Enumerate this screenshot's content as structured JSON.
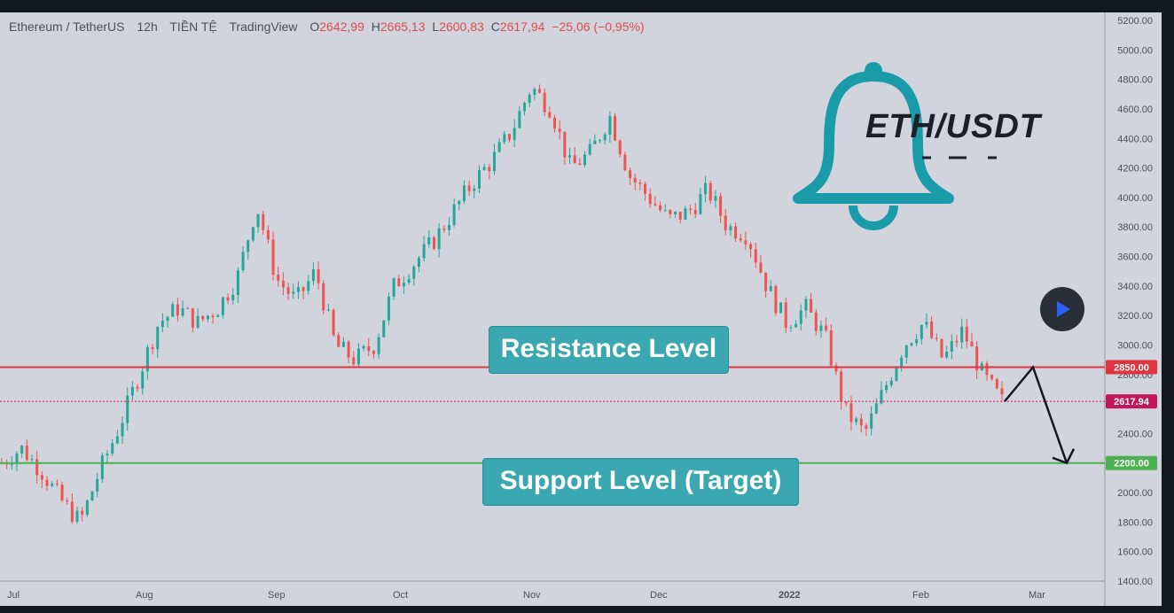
{
  "header": {
    "symbol": "Ethereum / TetherUS",
    "interval": "12h",
    "market": "TIỀN TỆ",
    "source": "TradingView",
    "o_label": "O",
    "o_value": "2642,99",
    "h_label": "H",
    "h_value": "2665,13",
    "l_label": "L",
    "l_value": "2600,83",
    "c_label": "C",
    "c_value": "2617,94",
    "change": "−25,06 (−0,95%)"
  },
  "annotations": {
    "resistance": "Resistance Level",
    "support": "Support Level (Target)",
    "pair": "ETH/USDT"
  },
  "colors": {
    "background": "#d1d4dc",
    "up": "#26a69a",
    "down": "#ef5350",
    "resistance_line": "#e0343f",
    "support_line": "#4caf50",
    "last_price": "#c2185b",
    "callout": "#3aa7b1",
    "bell": "#1a9ca8"
  },
  "chart_data": {
    "type": "candlestick",
    "ylim": [
      1400,
      5200
    ],
    "y_ticks": [
      "5200.00",
      "5000.00",
      "4800.00",
      "4600.00",
      "4400.00",
      "4200.00",
      "4000.00",
      "3800.00",
      "3600.00",
      "3400.00",
      "3200.00",
      "3000.00",
      "2800.00",
      "2600.00",
      "2400.00",
      "2200.00",
      "2000.00",
      "1800.00",
      "1600.00",
      "1400.00"
    ],
    "x_ticks": [
      "Jul",
      "Aug",
      "Sep",
      "Oct",
      "Nov",
      "Dec",
      "2022",
      "Feb",
      "Mar"
    ],
    "levels": [
      {
        "label": "2850.00",
        "value": 2850,
        "kind": "resistance"
      },
      {
        "label": "2200.00",
        "value": 2200,
        "kind": "support"
      },
      {
        "label": "2617.94",
        "value": 2617.94,
        "kind": "last"
      }
    ],
    "path_anchors": [
      {
        "date": "Jul",
        "close": 2200
      },
      {
        "date": "Jul 5",
        "close": 2300
      },
      {
        "date": "Jul 10",
        "close": 2150
      },
      {
        "date": "Jul 15",
        "close": 1950
      },
      {
        "date": "Jul 20",
        "close": 1800
      },
      {
        "date": "Jul 25",
        "close": 2150
      },
      {
        "date": "Jul 30",
        "close": 2450
      },
      {
        "date": "Aug 5",
        "close": 2800
      },
      {
        "date": "Aug 10",
        "close": 3150
      },
      {
        "date": "Aug 15",
        "close": 3250
      },
      {
        "date": "Aug 20",
        "close": 3150
      },
      {
        "date": "Aug 25",
        "close": 3250
      },
      {
        "date": "Sep 1",
        "close": 3450
      },
      {
        "date": "Sep 5",
        "close": 3950
      },
      {
        "date": "Sep 7",
        "close": 3450
      },
      {
        "date": "Sep 10",
        "close": 3300
      },
      {
        "date": "Sep 15",
        "close": 3500
      },
      {
        "date": "Sep 20",
        "close": 3000
      },
      {
        "date": "Sep 25",
        "close": 2900
      },
      {
        "date": "Oct",
        "close": 3000
      },
      {
        "date": "Oct 5",
        "close": 3400
      },
      {
        "date": "Oct 10",
        "close": 3550
      },
      {
        "date": "Oct 15",
        "close": 3700
      },
      {
        "date": "Oct 20",
        "close": 3900
      },
      {
        "date": "Oct 25",
        "close": 4100
      },
      {
        "date": "Oct 30",
        "close": 4250
      },
      {
        "date": "Nov 5",
        "close": 4450
      },
      {
        "date": "Nov 10",
        "close": 4750
      },
      {
        "date": "Nov 15",
        "close": 4600
      },
      {
        "date": "Nov 20",
        "close": 4200
      },
      {
        "date": "Nov 25",
        "close": 4300
      },
      {
        "date": "Dec",
        "close": 4550
      },
      {
        "date": "Dec 5",
        "close": 4150
      },
      {
        "date": "Dec 10",
        "close": 4000
      },
      {
        "date": "Dec 15",
        "close": 3850
      },
      {
        "date": "Dec 20",
        "close": 3900
      },
      {
        "date": "Dec 25",
        "close": 4050
      },
      {
        "date": "Dec 30",
        "close": 3800
      },
      {
        "date": "2022",
        "close": 3750
      },
      {
        "date": "Jan 5",
        "close": 3400
      },
      {
        "date": "Jan 10",
        "close": 3150
      },
      {
        "date": "Jan 15",
        "close": 3250
      },
      {
        "date": "Jan 20",
        "close": 3050
      },
      {
        "date": "Jan 22",
        "close": 2550
      },
      {
        "date": "Jan 25",
        "close": 2400
      },
      {
        "date": "Feb",
        "close": 2700
      },
      {
        "date": "Feb 5",
        "close": 3000
      },
      {
        "date": "Feb 10",
        "close": 3150
      },
      {
        "date": "Feb 15",
        "close": 2900
      },
      {
        "date": "Feb 17",
        "close": 3100
      },
      {
        "date": "Feb 20",
        "close": 2800
      },
      {
        "date": "Feb 22",
        "close": 2617.94
      }
    ],
    "projection": [
      {
        "date": "Feb 22",
        "value": 2617.94
      },
      {
        "date": "Feb 24",
        "value": 2850
      },
      {
        "date": "Mar 2",
        "value": 2200
      }
    ]
  }
}
